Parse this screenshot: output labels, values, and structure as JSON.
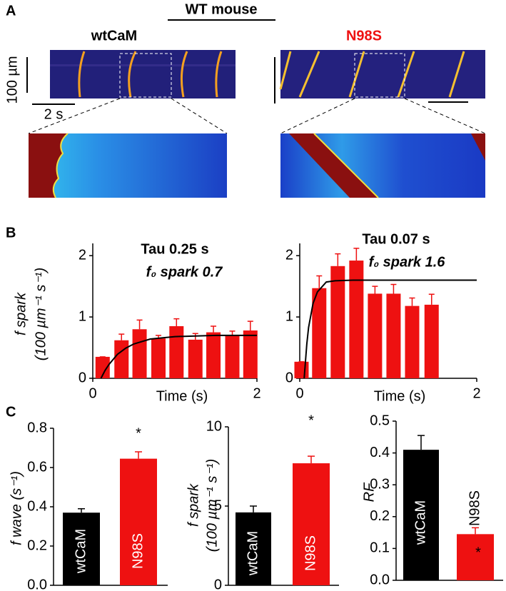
{
  "panel_a": {
    "label": "A",
    "title": "WT mouse",
    "left_title": "wtCaM",
    "right_title": "N98S",
    "scale_y": "100 µm",
    "scale_x": "2 s"
  },
  "panel_labels": {
    "b": "B",
    "c": "C"
  },
  "chart_data": [
    {
      "type": "bar",
      "ylabel": [
        "f spark",
        "(100 µm⁻¹ s⁻¹)"
      ],
      "xlabel": "Time (s)",
      "annotations": [
        "Tau 0.25 s",
        "f₀ spark  0.7"
      ],
      "x": [
        0.12,
        0.35,
        0.57,
        0.8,
        1.02,
        1.25,
        1.47,
        1.7,
        1.92
      ],
      "series": [
        {
          "color": "#ee1111",
          "values": [
            0.35,
            0.62,
            0.8,
            0.65,
            0.85,
            0.63,
            0.75,
            0.7,
            0.78
          ],
          "errors": [
            0,
            0.1,
            0.15,
            0.05,
            0.12,
            0.1,
            0.1,
            0.07,
            0.15
          ]
        }
      ],
      "fit": {
        "color": "#000000",
        "x": [
          0.1,
          0.15,
          0.2,
          0.3,
          0.4,
          0.5,
          0.7,
          1,
          1.5,
          2
        ],
        "values": [
          0,
          0.13,
          0.23,
          0.39,
          0.49,
          0.56,
          0.64,
          0.68,
          0.7,
          0.7
        ]
      },
      "xlim": [
        0,
        2
      ],
      "xticks": [
        0,
        2
      ],
      "ylim": [
        0,
        2.2
      ],
      "yticks": [
        0,
        1,
        2
      ]
    },
    {
      "type": "bar",
      "xlabel": "Time (s)",
      "annotations": [
        "Tau 0.07 s",
        "f₀ spark  1.6"
      ],
      "x": [
        0.02,
        0.22,
        0.43,
        0.64,
        0.85,
        1.06,
        1.27,
        1.49
      ],
      "series": [
        {
          "color": "#ee1111",
          "values": [
            0.27,
            1.47,
            1.83,
            1.92,
            1.38,
            1.38,
            1.18,
            1.2
          ],
          "errors": [
            0,
            0.2,
            0.2,
            0.2,
            0.12,
            0.15,
            0.13,
            0.17
          ]
        }
      ],
      "fit": {
        "color": "#000000",
        "x": [
          0.05,
          0.08,
          0.1,
          0.15,
          0.2,
          0.3,
          0.4,
          0.6,
          1,
          1.5,
          2
        ],
        "values": [
          0,
          0.56,
          0.83,
          1.22,
          1.41,
          1.57,
          1.59,
          1.6,
          1.6,
          1.6,
          1.6
        ]
      },
      "xlim": [
        0,
        2
      ],
      "xticks": [
        0,
        2
      ],
      "ylim": [
        0,
        2.2
      ],
      "yticks": [
        0,
        1,
        2
      ]
    },
    {
      "type": "bar",
      "ylabel": [
        "f wave (s⁻¹)"
      ],
      "annotations": [
        "*"
      ],
      "categories": [
        "wtCaM",
        "N98S"
      ],
      "values": [
        0.37,
        0.645
      ],
      "errors": [
        0.02,
        0.035
      ],
      "colors": [
        "#000000",
        "#ee1111"
      ],
      "ylim": [
        0,
        0.8
      ],
      "yticks": [
        {
          "value": 0,
          "label": "0.0"
        },
        0.2,
        0.4,
        0.6,
        0.8
      ]
    },
    {
      "type": "bar",
      "ylabel": [
        "f spark",
        "(100 µm⁻¹ s⁻¹)"
      ],
      "annotations": [
        "*"
      ],
      "categories": [
        "wtCaM",
        "N98S"
      ],
      "values": [
        4.6,
        7.7
      ],
      "errors": [
        0.4,
        0.45
      ],
      "colors": [
        "#000000",
        "#ee1111"
      ],
      "ylim": [
        0,
        10
      ],
      "yticks": [
        0,
        5,
        10
      ]
    },
    {
      "type": "bar",
      "ylabel": [
        "RF"
      ],
      "annotations": [
        "*"
      ],
      "categories": [
        "wtCaM",
        "N98S"
      ],
      "values": [
        0.41,
        0.145
      ],
      "errors": [
        0.045,
        0.02
      ],
      "colors": [
        "#000000",
        "#ee1111"
      ],
      "ylim": [
        0,
        0.5
      ],
      "yticks": [
        {
          "value": 0,
          "label": "0.0"
        },
        0.1,
        0.2,
        0.3,
        0.4,
        0.5
      ]
    }
  ]
}
